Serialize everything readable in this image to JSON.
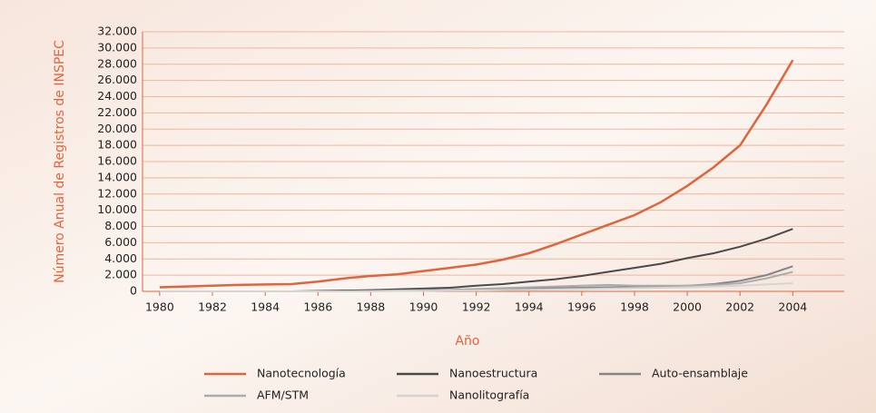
{
  "chart_data": {
    "type": "line",
    "ylabel": "Número Anual de Registros de INSPEC",
    "xlabel": "Año",
    "x": [
      1980,
      1981,
      1982,
      1983,
      1984,
      1985,
      1986,
      1987,
      1988,
      1989,
      1990,
      1991,
      1992,
      1993,
      1994,
      1995,
      1996,
      1997,
      1998,
      1999,
      2000,
      2001,
      2002,
      2003,
      2004
    ],
    "series": [
      {
        "name": "Nanotecnología",
        "color": "#e0643c",
        "values": [
          500,
          600,
          700,
          800,
          850,
          900,
          1200,
          1600,
          1900,
          2100,
          2500,
          2900,
          3300,
          3900,
          4700,
          5800,
          7000,
          8200,
          9400,
          11000,
          13000,
          15300,
          18000,
          23000,
          28500
        ]
      },
      {
        "name": "Nanoestructura",
        "color": "#4a4a4a",
        "values": [
          0,
          0,
          0,
          0,
          0,
          0,
          50,
          100,
          150,
          250,
          350,
          450,
          700,
          900,
          1200,
          1500,
          1900,
          2400,
          2900,
          3400,
          4100,
          4700,
          5500,
          6500,
          7700
        ]
      },
      {
        "name": "Auto-ensamblaje",
        "color": "#858585",
        "values": [
          0,
          0,
          0,
          0,
          0,
          0,
          0,
          0,
          50,
          100,
          100,
          150,
          200,
          300,
          350,
          400,
          450,
          500,
          550,
          600,
          700,
          900,
          1300,
          2000,
          3100
        ]
      },
      {
        "name": "AFM/STM",
        "color": "#ababab",
        "values": [
          0,
          0,
          0,
          0,
          0,
          0,
          0,
          0,
          50,
          100,
          150,
          200,
          300,
          400,
          500,
          600,
          700,
          800,
          700,
          700,
          700,
          800,
          1000,
          1600,
          2400
        ]
      },
      {
        "name": "Nanolitografía",
        "color": "#d4d4d4",
        "values": [
          0,
          0,
          0,
          0,
          0,
          0,
          0,
          0,
          0,
          50,
          50,
          100,
          100,
          150,
          200,
          250,
          300,
          350,
          400,
          450,
          500,
          600,
          700,
          850,
          1000
        ]
      }
    ],
    "xlim": [
      1979.35,
      2005.95
    ],
    "xticks": [
      1980,
      1982,
      1984,
      1986,
      1988,
      1990,
      1992,
      1994,
      1996,
      1998,
      2000,
      2002,
      2004
    ],
    "ylim": [
      0,
      32000
    ],
    "yticks": [
      0,
      {
        "value": 2000,
        "label": "2.000"
      },
      {
        "value": 4000,
        "label": "4.000"
      },
      {
        "value": 6000,
        "label": "6.000"
      },
      {
        "value": 8000,
        "label": "8.000"
      },
      {
        "value": 10000,
        "label": "10.000"
      },
      {
        "value": 12000,
        "label": "12.000"
      },
      {
        "value": 14000,
        "label": "14.000"
      },
      {
        "value": 16000,
        "label": "16.000"
      },
      {
        "value": 18000,
        "label": "18.000"
      },
      {
        "value": 20000,
        "label": "20.000"
      },
      {
        "value": 22000,
        "label": "22.000"
      },
      {
        "value": 24000,
        "label": "24.000"
      },
      {
        "value": 26000,
        "label": "26.000"
      },
      {
        "value": 28000,
        "label": "28.000"
      },
      {
        "value": 30000,
        "label": "30.000"
      },
      {
        "value": 32000,
        "label": "32.000"
      }
    ],
    "grid": true,
    "legend": "bottom"
  }
}
